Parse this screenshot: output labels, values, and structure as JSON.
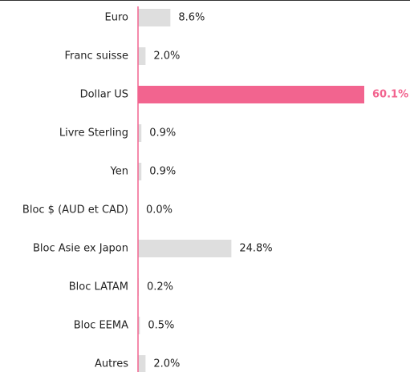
{
  "chart_data": {
    "type": "barh",
    "categories": [
      "Euro",
      "Franc suisse",
      "Dollar US",
      "Livre Sterling",
      "Yen",
      "Bloc $ (AUD et CAD)",
      "Bloc Asie ex Japon",
      "Bloc LATAM",
      "Bloc EEMA",
      "Autres"
    ],
    "values": [
      8.6,
      2.0,
      60.1,
      0.9,
      0.9,
      0.0,
      24.8,
      0.2,
      0.5,
      2.0
    ],
    "value_labels": [
      "8.6%",
      "2.0%",
      "60.1%",
      "0.9%",
      "0.9%",
      "0.0%",
      "24.8%",
      "0.2%",
      "0.5%",
      "2.0%"
    ],
    "colors": [
      "#dedede",
      "#dedede",
      "#f2648f",
      "#dedede",
      "#dedede",
      "#dedede",
      "#dedede",
      "#dedede",
      "#dedede",
      "#dedede"
    ],
    "axis_color": "#f2648f"
  }
}
